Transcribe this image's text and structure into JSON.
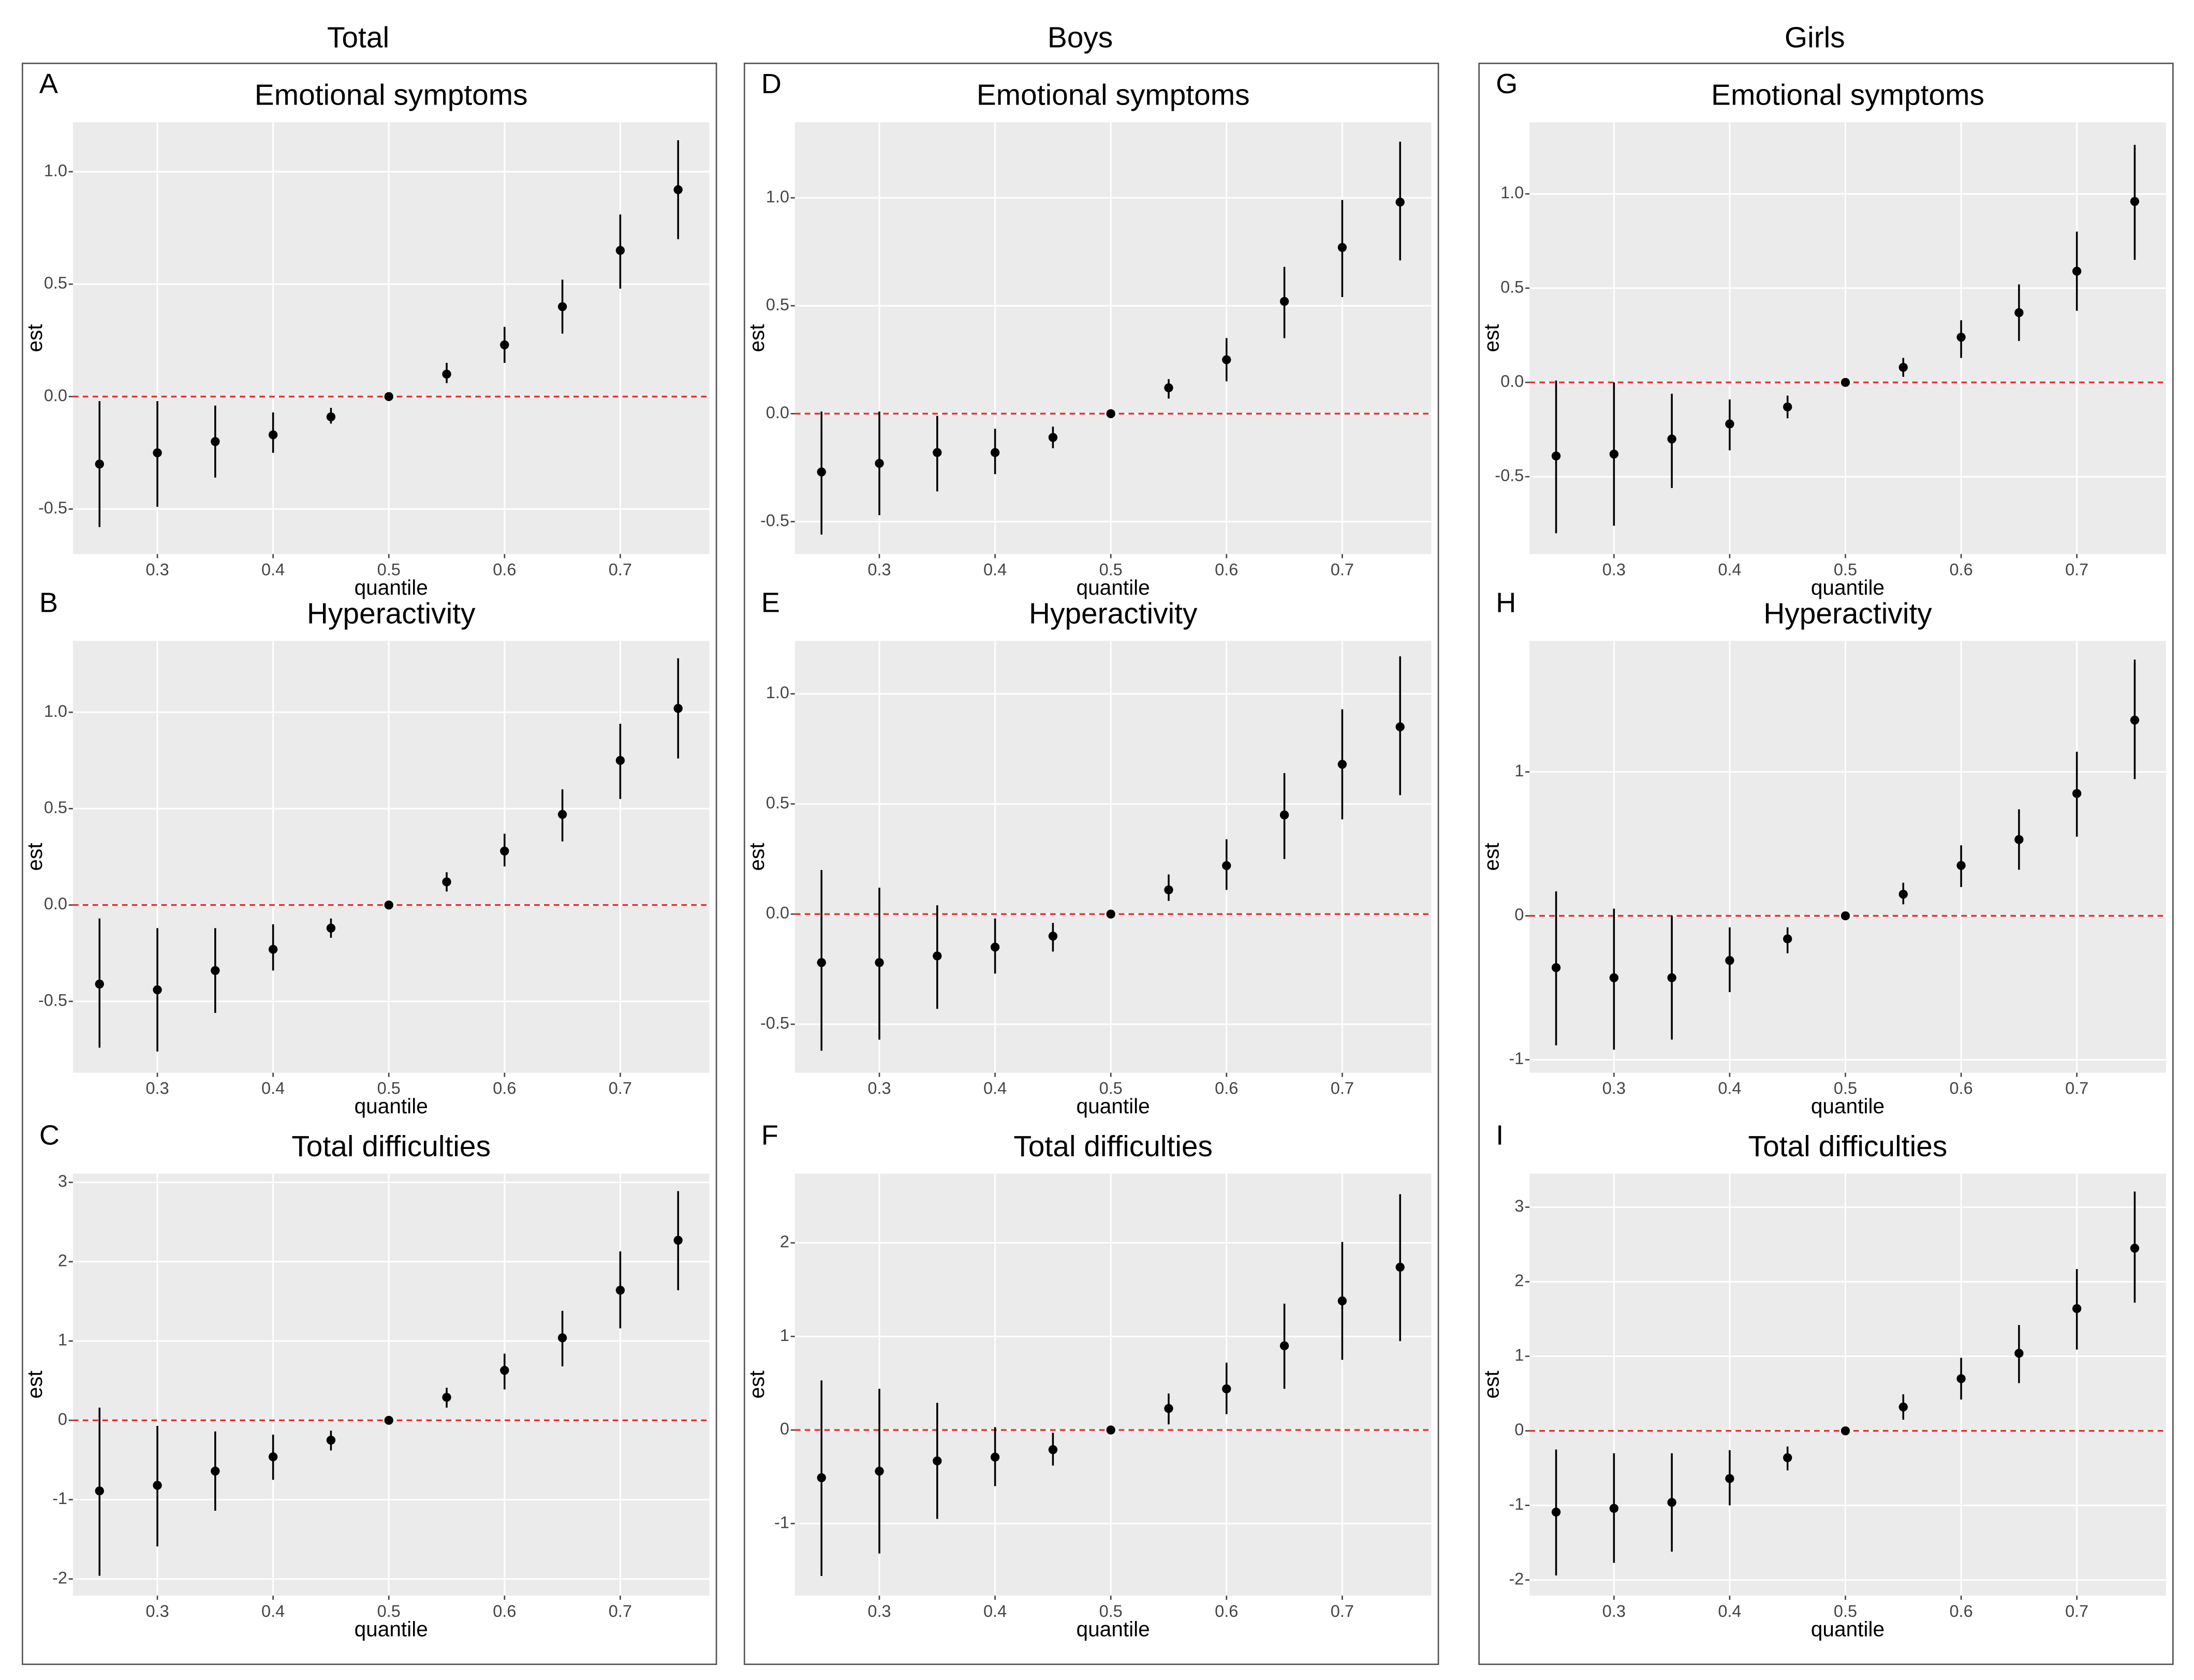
{
  "column_titles": [
    "Total",
    "Boys",
    "Girls"
  ],
  "chart_data": [
    {
      "type": "pointrange",
      "panel": "A",
      "title": "Emotional symptoms",
      "xlabel": "quantile",
      "ylabel": "est",
      "color": "#000000",
      "grid": true,
      "reference_line": 0,
      "reference_color": "#e8292b",
      "x": [
        0.25,
        0.3,
        0.35,
        0.4,
        0.45,
        0.5,
        0.55,
        0.6,
        0.65,
        0.7,
        0.75
      ],
      "values": [
        -0.3,
        -0.25,
        -0.2,
        -0.17,
        -0.09,
        0,
        0.1,
        0.23,
        0.4,
        0.65,
        0.92
      ],
      "lower": [
        -0.58,
        -0.49,
        -0.36,
        -0.25,
        -0.12,
        0,
        0.06,
        0.15,
        0.28,
        0.48,
        0.7
      ],
      "upper": [
        -0.02,
        -0.02,
        -0.04,
        -0.07,
        -0.05,
        0,
        0.15,
        0.31,
        0.52,
        0.81,
        1.14
      ],
      "xlim": [
        0.227,
        0.777
      ],
      "ylim": [
        -0.7,
        1.22
      ],
      "xticks": [
        0.3,
        0.4,
        0.5,
        0.6,
        0.7
      ],
      "yticks": [
        -0.5,
        {
          "value": 0,
          "label": "0.0"
        },
        0.5,
        {
          "value": 1,
          "label": "1.0"
        }
      ]
    },
    {
      "type": "pointrange",
      "panel": "B",
      "title": "Hyperactivity",
      "xlabel": "quantile",
      "ylabel": "est",
      "color": "#000000",
      "grid": true,
      "reference_line": 0,
      "reference_color": "#e8292b",
      "x": [
        0.25,
        0.3,
        0.35,
        0.4,
        0.45,
        0.5,
        0.55,
        0.6,
        0.65,
        0.7,
        0.75
      ],
      "values": [
        -0.41,
        -0.44,
        -0.34,
        -0.23,
        -0.12,
        0,
        0.12,
        0.28,
        0.47,
        0.75,
        1.02
      ],
      "lower": [
        -0.74,
        -0.76,
        -0.56,
        -0.34,
        -0.17,
        0,
        0.07,
        0.2,
        0.33,
        0.55,
        0.76
      ],
      "upper": [
        -0.07,
        -0.12,
        -0.12,
        -0.1,
        -0.07,
        0,
        0.17,
        0.37,
        0.6,
        0.94,
        1.28
      ],
      "xlim": [
        0.227,
        0.777
      ],
      "ylim": [
        -0.87,
        1.37
      ],
      "xticks": [
        0.3,
        0.4,
        0.5,
        0.6,
        0.7
      ],
      "yticks": [
        -0.5,
        {
          "value": 0,
          "label": "0.0"
        },
        0.5,
        {
          "value": 1,
          "label": "1.0"
        }
      ]
    },
    {
      "type": "pointrange",
      "panel": "C",
      "title": "Total difficulties",
      "xlabel": "quantile",
      "ylabel": "est",
      "color": "#000000",
      "grid": true,
      "reference_line": 0,
      "reference_color": "#e8292b",
      "x": [
        0.25,
        0.3,
        0.35,
        0.4,
        0.45,
        0.5,
        0.55,
        0.6,
        0.65,
        0.7,
        0.75
      ],
      "values": [
        -0.89,
        -0.82,
        -0.64,
        -0.46,
        -0.25,
        0,
        0.29,
        0.63,
        1.04,
        1.64,
        2.27
      ],
      "lower": [
        -1.96,
        -1.59,
        -1.14,
        -0.75,
        -0.38,
        0,
        0.16,
        0.39,
        0.68,
        1.16,
        1.64
      ],
      "upper": [
        0.16,
        -0.07,
        -0.14,
        -0.18,
        -0.13,
        0,
        0.41,
        0.84,
        1.38,
        2.13,
        2.89
      ],
      "xlim": [
        0.227,
        0.777
      ],
      "ylim": [
        -2.21,
        3.11
      ],
      "xticks": [
        0.3,
        0.4,
        0.5,
        0.6,
        0.7
      ],
      "yticks": [
        -2,
        -1,
        0,
        1,
        2,
        3
      ]
    },
    {
      "type": "pointrange",
      "panel": "D",
      "title": "Emotional symptoms",
      "xlabel": "quantile",
      "ylabel": "est",
      "color": "#000000",
      "grid": true,
      "reference_line": 0,
      "reference_color": "#e8292b",
      "x": [
        0.25,
        0.3,
        0.35,
        0.4,
        0.45,
        0.5,
        0.55,
        0.6,
        0.65,
        0.7,
        0.75
      ],
      "values": [
        -0.27,
        -0.23,
        -0.18,
        -0.18,
        -0.11,
        0,
        0.12,
        0.25,
        0.52,
        0.77,
        0.98
      ],
      "lower": [
        -0.56,
        -0.47,
        -0.36,
        -0.28,
        -0.16,
        0,
        0.07,
        0.15,
        0.35,
        0.54,
        0.71
      ],
      "upper": [
        0.01,
        0.01,
        -0.01,
        -0.07,
        -0.06,
        0,
        0.16,
        0.35,
        0.68,
        0.99,
        1.26
      ],
      "xlim": [
        0.227,
        0.777
      ],
      "ylim": [
        -0.65,
        1.35
      ],
      "xticks": [
        0.3,
        0.4,
        0.5,
        0.6,
        0.7
      ],
      "yticks": [
        -0.5,
        {
          "value": 0,
          "label": "0.0"
        },
        0.5,
        {
          "value": 1,
          "label": "1.0"
        }
      ]
    },
    {
      "type": "pointrange",
      "panel": "E",
      "title": "Hyperactivity",
      "xlabel": "quantile",
      "ylabel": "est",
      "color": "#000000",
      "grid": true,
      "reference_line": 0,
      "reference_color": "#e8292b",
      "x": [
        0.25,
        0.3,
        0.35,
        0.4,
        0.45,
        0.5,
        0.55,
        0.6,
        0.65,
        0.7,
        0.75
      ],
      "values": [
        -0.22,
        -0.22,
        -0.19,
        -0.15,
        -0.1,
        0,
        0.11,
        0.22,
        0.45,
        0.68,
        0.85
      ],
      "lower": [
        -0.62,
        -0.57,
        -0.43,
        -0.27,
        -0.17,
        0,
        0.06,
        0.11,
        0.25,
        0.43,
        0.54
      ],
      "upper": [
        0.2,
        0.12,
        0.04,
        -0.02,
        -0.04,
        0,
        0.18,
        0.34,
        0.64,
        0.93,
        1.17
      ],
      "xlim": [
        0.227,
        0.777
      ],
      "ylim": [
        -0.72,
        1.24
      ],
      "xticks": [
        0.3,
        0.4,
        0.5,
        0.6,
        0.7
      ],
      "yticks": [
        -0.5,
        {
          "value": 0,
          "label": "0.0"
        },
        0.5,
        {
          "value": 1,
          "label": "1.0"
        }
      ]
    },
    {
      "type": "pointrange",
      "panel": "F",
      "title": "Total difficulties",
      "xlabel": "quantile",
      "ylabel": "est",
      "color": "#000000",
      "grid": true,
      "reference_line": 0,
      "reference_color": "#e8292b",
      "x": [
        0.25,
        0.3,
        0.35,
        0.4,
        0.45,
        0.5,
        0.55,
        0.6,
        0.65,
        0.7,
        0.75
      ],
      "values": [
        -0.51,
        -0.44,
        -0.33,
        -0.29,
        -0.21,
        0,
        0.23,
        0.44,
        0.9,
        1.38,
        1.74
      ],
      "lower": [
        -1.56,
        -1.32,
        -0.95,
        -0.6,
        -0.38,
        0,
        0.06,
        0.17,
        0.44,
        0.75,
        0.95
      ],
      "upper": [
        0.53,
        0.44,
        0.29,
        0.03,
        -0.03,
        0,
        0.39,
        0.72,
        1.35,
        2.01,
        2.52
      ],
      "xlim": [
        0.227,
        0.777
      ],
      "ylim": [
        -1.77,
        2.74
      ],
      "xticks": [
        0.3,
        0.4,
        0.5,
        0.6,
        0.7
      ],
      "yticks": [
        -1,
        0,
        1,
        2
      ]
    },
    {
      "type": "pointrange",
      "panel": "G",
      "title": "Emotional symptoms",
      "xlabel": "quantile",
      "ylabel": "est",
      "color": "#000000",
      "grid": true,
      "reference_line": 0,
      "reference_color": "#e8292b",
      "x": [
        0.25,
        0.3,
        0.35,
        0.4,
        0.45,
        0.5,
        0.55,
        0.6,
        0.65,
        0.7,
        0.75
      ],
      "values": [
        -0.39,
        -0.38,
        -0.3,
        -0.22,
        -0.13,
        0,
        0.08,
        0.24,
        0.37,
        0.59,
        0.96
      ],
      "lower": [
        -0.8,
        -0.76,
        -0.56,
        -0.36,
        -0.19,
        0,
        0.03,
        0.13,
        0.22,
        0.38,
        0.65
      ],
      "upper": [
        0.01,
        0.0,
        -0.06,
        -0.09,
        -0.07,
        0,
        0.13,
        0.33,
        0.52,
        0.8,
        1.26
      ],
      "xlim": [
        0.227,
        0.777
      ],
      "ylim": [
        -0.91,
        1.38
      ],
      "xticks": [
        0.3,
        0.4,
        0.5,
        0.6,
        0.7
      ],
      "yticks": [
        -0.5,
        {
          "value": 0,
          "label": "0.0"
        },
        0.5,
        {
          "value": 1,
          "label": "1.0"
        }
      ]
    },
    {
      "type": "pointrange",
      "panel": "H",
      "title": "Hyperactivity",
      "xlabel": "quantile",
      "ylabel": "est",
      "color": "#000000",
      "grid": true,
      "reference_line": 0,
      "reference_color": "#e8292b",
      "x": [
        0.25,
        0.3,
        0.35,
        0.4,
        0.45,
        0.5,
        0.55,
        0.6,
        0.65,
        0.7,
        0.75
      ],
      "values": [
        -0.36,
        -0.43,
        -0.43,
        -0.31,
        -0.16,
        0,
        0.15,
        0.35,
        0.53,
        0.85,
        1.36
      ],
      "lower": [
        -0.9,
        -0.93,
        -0.86,
        -0.53,
        -0.26,
        0,
        0.08,
        0.2,
        0.32,
        0.55,
        0.95
      ],
      "upper": [
        0.17,
        0.05,
        0.0,
        -0.08,
        -0.08,
        0,
        0.23,
        0.49,
        0.74,
        1.14,
        1.78
      ],
      "xlim": [
        0.227,
        0.777
      ],
      "ylim": [
        -1.09,
        1.91
      ],
      "xticks": [
        0.3,
        0.4,
        0.5,
        0.6,
        0.7
      ],
      "yticks": [
        -1,
        0,
        1
      ]
    },
    {
      "type": "pointrange",
      "panel": "I",
      "title": "Total difficulties",
      "xlabel": "quantile",
      "ylabel": "est",
      "color": "#000000",
      "grid": true,
      "reference_line": 0,
      "reference_color": "#e8292b",
      "x": [
        0.25,
        0.3,
        0.35,
        0.4,
        0.45,
        0.5,
        0.55,
        0.6,
        0.65,
        0.7,
        0.75
      ],
      "values": [
        -1.09,
        -1.04,
        -0.96,
        -0.64,
        -0.36,
        0,
        0.32,
        0.7,
        1.04,
        1.64,
        2.45
      ],
      "lower": [
        -1.94,
        -1.77,
        -1.62,
        -1.0,
        -0.53,
        0,
        0.15,
        0.42,
        0.64,
        1.09,
        1.72
      ],
      "upper": [
        -0.25,
        -0.3,
        -0.3,
        -0.26,
        -0.21,
        0,
        0.49,
        0.98,
        1.42,
        2.17,
        3.21
      ],
      "xlim": [
        0.227,
        0.777
      ],
      "ylim": [
        -2.21,
        3.45
      ],
      "xticks": [
        0.3,
        0.4,
        0.5,
        0.6,
        0.7
      ],
      "yticks": [
        -2,
        -1,
        0,
        1,
        2,
        3
      ]
    }
  ]
}
